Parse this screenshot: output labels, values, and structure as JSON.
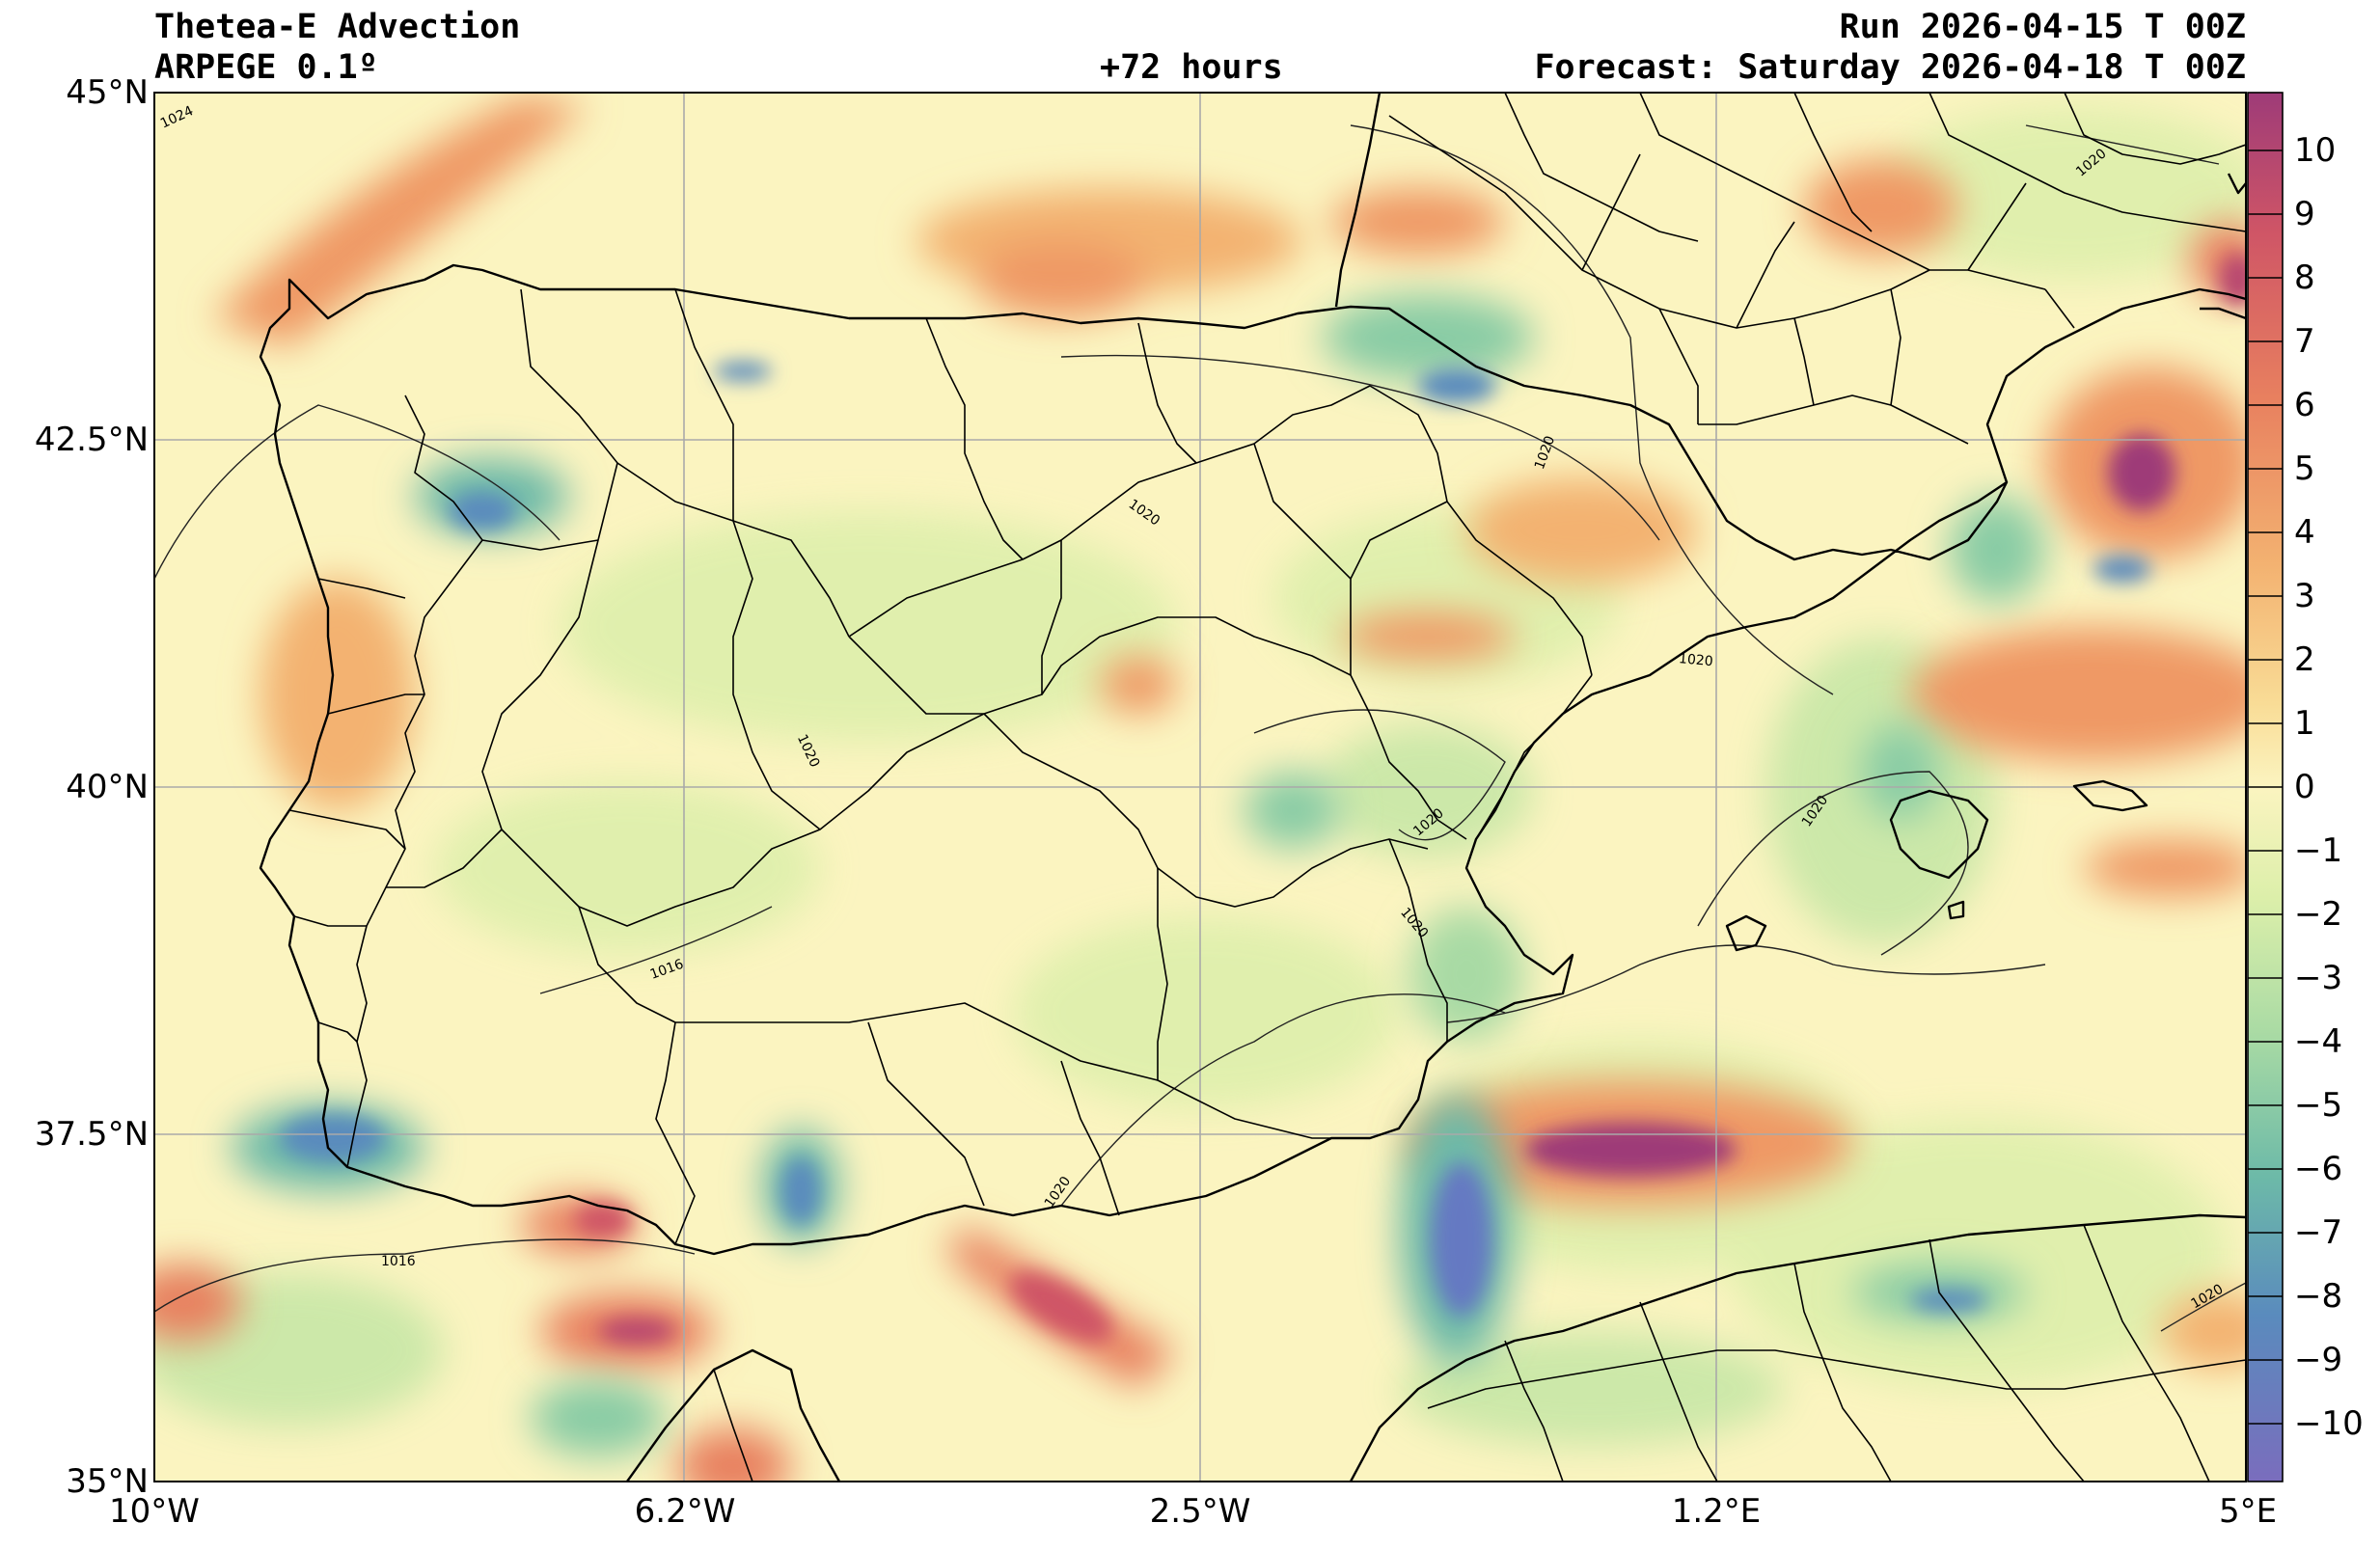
{
  "header": {
    "title": "Thetea-E Advection",
    "model": "ARPEGE 0.1º",
    "lead": "+72 hours",
    "run": "Run 2026-04-15 T 00Z",
    "forecast": "Forecast: Saturday 2026-04-18 T 00Z"
  },
  "axes": {
    "lat_labels": [
      "45°N",
      "42.5°N",
      "40°N",
      "37.5°N",
      "35°N"
    ],
    "lon_labels": [
      "10°W",
      "6.2°W",
      "2.5°W",
      "1.2°E",
      "5°E"
    ],
    "lat_range": [
      35,
      45
    ],
    "lon_range": [
      -10,
      5
    ]
  },
  "colorbar": {
    "labels": [
      "10",
      "9",
      "8",
      "7",
      "6",
      "5",
      "4",
      "3",
      "2",
      "1",
      "0",
      "−1",
      "−2",
      "−3",
      "−4",
      "−5",
      "−6",
      "−7",
      "−8",
      "−9",
      "−10"
    ],
    "colors": [
      "#9e3b78",
      "#b8466f",
      "#cf5566",
      "#dd6a5f",
      "#e8805f",
      "#ef9965",
      "#f3b271",
      "#f6c982",
      "#f9dc96",
      "#fbebad",
      "#fbf4c0",
      "#eef4b5",
      "#dcefaa",
      "#c4e6a5",
      "#a8daa4",
      "#89cca5",
      "#6dbaa8",
      "#5aa4b0",
      "#5a8bbd",
      "#6579c2",
      "#7a6dbd"
    ]
  },
  "isobars": {
    "labels": [
      "1024",
      "1020",
      "1020",
      "1020",
      "1020",
      "1020",
      "1020",
      "1020",
      "1020",
      "1020",
      "1016",
      "1016",
      "1020"
    ]
  }
}
